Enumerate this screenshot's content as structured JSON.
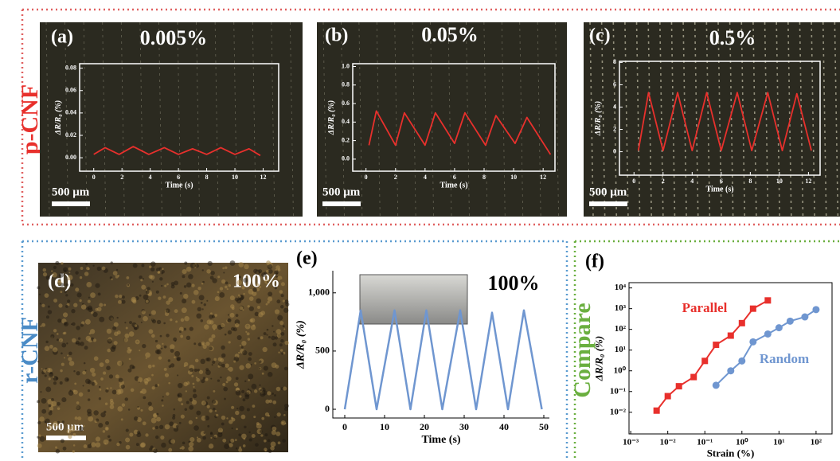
{
  "groups": {
    "top": "p-CNF",
    "bottom_left": "r-CNF",
    "right": "Compare"
  },
  "image_panel": {
    "label": "(d)",
    "title": "100%",
    "scale_bar": "500 μm"
  },
  "chart_data": [
    {
      "type": "line",
      "label": "(a)",
      "title": "0.005%",
      "scale_bar": "500 μm",
      "xlabel": "Time (s)",
      "ylabel": "ΔR/R₀ (%)",
      "x": [
        0,
        0.8,
        1.8,
        2.8,
        3.9,
        5.0,
        6.0,
        7.0,
        8.0,
        9.0,
        10.0,
        11.0,
        11.8
      ],
      "values": [
        0.003,
        0.009,
        0.003,
        0.01,
        0.003,
        0.009,
        0.003,
        0.008,
        0.003,
        0.009,
        0.003,
        0.008,
        0.002
      ],
      "color": "#e8302c",
      "xlim": [
        -1,
        13.1
      ],
      "ylim": [
        -0.012,
        0.084
      ],
      "xticks": [
        0,
        2,
        4,
        6,
        8,
        10,
        12
      ],
      "yticks": [
        {
          "value": 0,
          "label": "0.00"
        },
        0.02,
        0.04,
        0.06,
        0.08
      ]
    },
    {
      "type": "line",
      "label": "(b)",
      "title": "0.05%",
      "scale_bar": "500 μm",
      "xlabel": "Time (s)",
      "ylabel": "ΔR/R₀ (%)",
      "x": [
        0.2,
        0.7,
        2.0,
        2.6,
        4.0,
        4.7,
        6.0,
        6.7,
        8.1,
        8.8,
        10.1,
        10.9,
        12.5
      ],
      "values": [
        0.15,
        0.52,
        0.15,
        0.5,
        0.15,
        0.5,
        0.17,
        0.5,
        0.15,
        0.47,
        0.17,
        0.45,
        0.05
      ],
      "color": "#e8302c",
      "xlim": [
        -0.9,
        12.8
      ],
      "ylim": [
        -0.13,
        1.03
      ],
      "xticks": [
        0,
        2,
        4,
        6,
        8,
        10,
        12
      ],
      "yticks": [
        {
          "value": 0,
          "label": "0.0"
        },
        0.2,
        0.4,
        0.6,
        0.8,
        {
          "value": 1,
          "label": "1.0"
        }
      ]
    },
    {
      "type": "line",
      "label": "(c)",
      "title": "0.5%",
      "scale_bar": "500 μm",
      "xlabel": "Time (s)",
      "ylabel": "ΔR/R₀ (%)",
      "x": [
        0.3,
        1.0,
        2.0,
        3.0,
        4.0,
        5.0,
        6.0,
        7.1,
        8.1,
        9.2,
        10.2,
        11.2,
        12.2
      ],
      "values": [
        0.1,
        5.3,
        0.1,
        5.3,
        0.1,
        5.3,
        0.1,
        5.3,
        0.1,
        5.3,
        0.1,
        5.2,
        0.1
      ],
      "color": "#e8302c",
      "xlim": [
        -1,
        12.8
      ],
      "ylim": [
        -2.1,
        8.1
      ],
      "xticks": [
        0,
        2,
        4,
        6,
        8,
        10,
        12
      ],
      "yticks": [
        0,
        2,
        4,
        6,
        8
      ]
    },
    {
      "type": "line",
      "label": "(e)",
      "title": "100%",
      "xlabel": "Time (s)",
      "ylabel": "ΔR/R₀ (%)",
      "x": [
        0,
        4,
        8,
        12.5,
        16.5,
        20.5,
        24.5,
        29,
        33,
        37,
        41,
        45,
        49.5
      ],
      "values": [
        0,
        850,
        0,
        850,
        0,
        850,
        0,
        850,
        0,
        830,
        0,
        850,
        0
      ],
      "color": "#6f96d0",
      "xlim": [
        -3,
        51.4
      ],
      "ylim": [
        -75,
        1190
      ],
      "xticks": [
        0,
        10,
        20,
        30,
        40,
        50
      ],
      "yticks": [
        0,
        500,
        {
          "value": 1000,
          "label": "1,000"
        }
      ]
    },
    {
      "type": "scatter",
      "label": "(f)",
      "xlabel": "Strain (%)",
      "ylabel": "ΔR/R₀ (%)",
      "log_scale": true,
      "xlim": [
        0.0009,
        270
      ],
      "ylim": [
        0.0009,
        18000
      ],
      "xticks": [
        {
          "value": 0.001,
          "label": "10⁻³"
        },
        {
          "value": 0.01,
          "label": "10⁻²"
        },
        {
          "value": 0.1,
          "label": "10⁻¹"
        },
        {
          "value": 1,
          "label": "10⁰"
        },
        {
          "value": 10,
          "label": "10¹"
        },
        {
          "value": 100,
          "label": "10²"
        }
      ],
      "yticks": [
        {
          "value": 0.01,
          "label": "10⁻²"
        },
        {
          "value": 0.1,
          "label": "10⁻¹"
        },
        {
          "value": 1,
          "label": "10⁰"
        },
        {
          "value": 10,
          "label": "10¹"
        },
        {
          "value": 100,
          "label": "10²"
        },
        {
          "value": 1000,
          "label": "10³"
        },
        {
          "value": 10000,
          "label": "10⁴"
        }
      ],
      "series": [
        {
          "name": "Parallel",
          "color": "#e8302c",
          "marker": "square",
          "x": [
            0.005,
            0.01,
            0.02,
            0.05,
            0.1,
            0.2,
            0.5,
            1,
            2,
            5
          ],
          "values": [
            0.012,
            0.06,
            0.18,
            0.5,
            3,
            18,
            50,
            200,
            1000,
            2500
          ]
        },
        {
          "name": "Random",
          "color": "#6f96d0",
          "marker": "circle",
          "x": [
            0.2,
            0.5,
            1,
            2,
            5,
            10,
            20,
            50,
            100
          ],
          "values": [
            0.2,
            1,
            3,
            25,
            60,
            120,
            250,
            400,
            900
          ]
        }
      ]
    }
  ]
}
